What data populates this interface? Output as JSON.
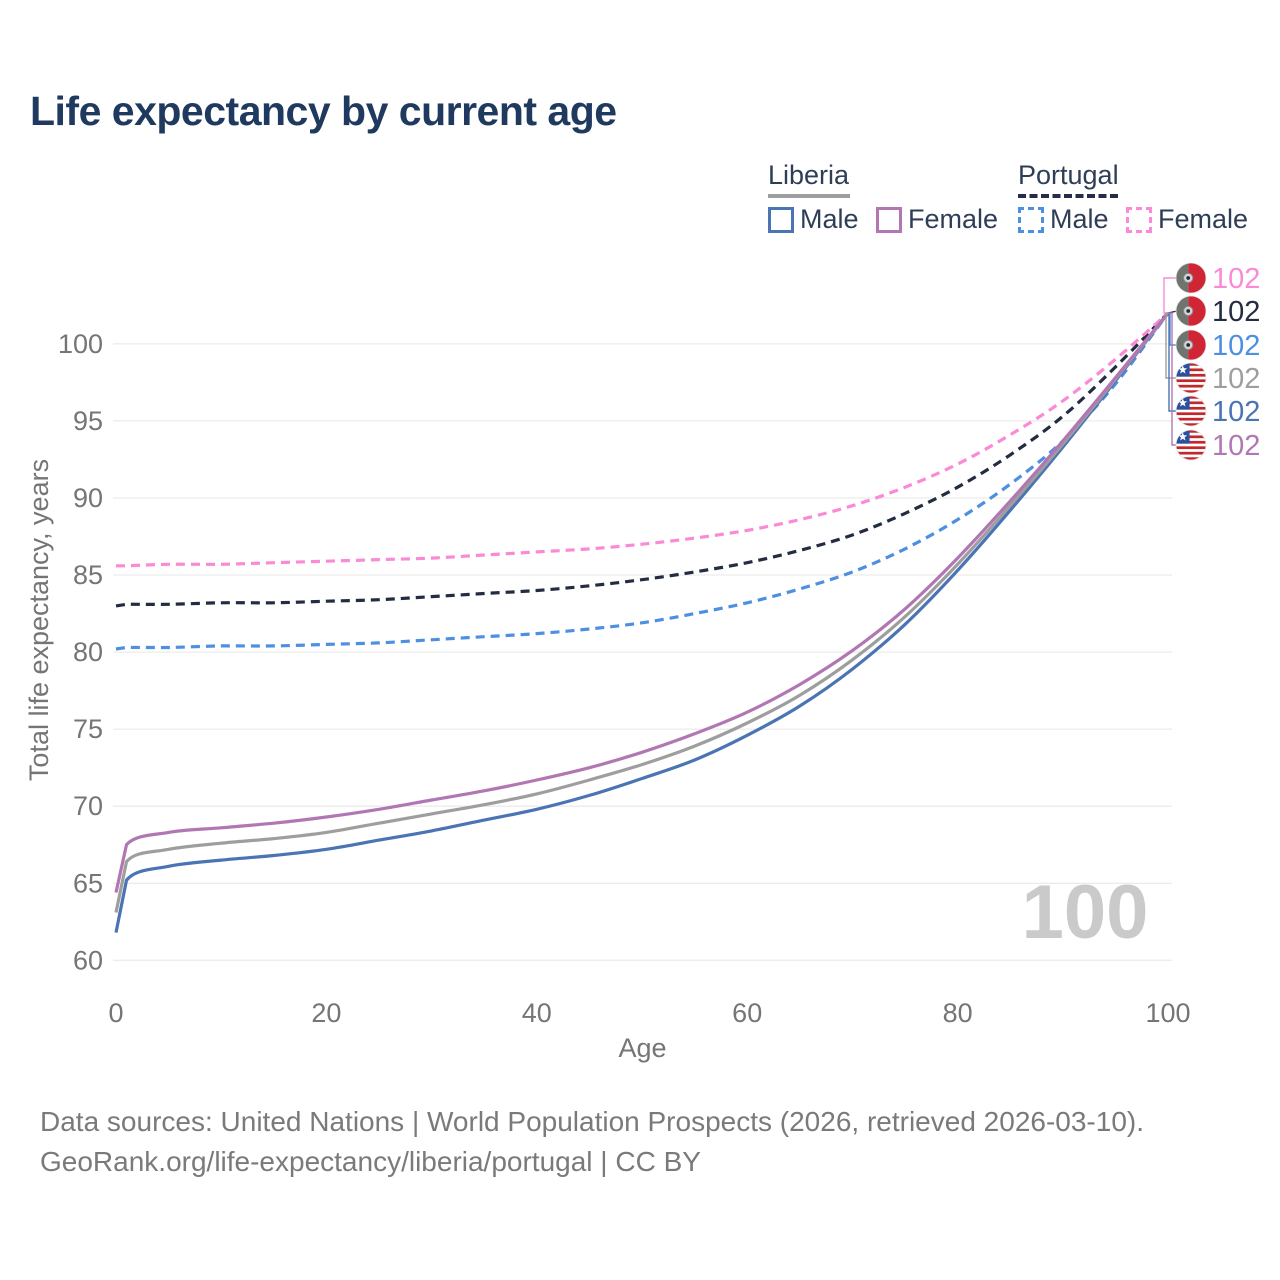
{
  "title": "Life expectancy by current age",
  "legend": {
    "groups": [
      {
        "name": "Liberia",
        "line_style": "solid",
        "underline_color": "#9e9e9e",
        "items": [
          {
            "label": "Male",
            "color": "#4a74b4"
          },
          {
            "label": "Female",
            "color": "#b177b3"
          }
        ]
      },
      {
        "name": "Portugal",
        "line_style": "dashed",
        "underline_color": "#242e49",
        "items": [
          {
            "label": "Male",
            "color": "#4d8fe0"
          },
          {
            "label": "Female",
            "color": "#fb8ad6"
          }
        ]
      }
    ]
  },
  "watermark": "100",
  "footer": {
    "line1": "Data sources: United Nations | World Population Prospects (2026, retrieved 2026-03-10).",
    "line2": "GeoRank.org/life-expectancy/liberia/portugal | CC BY"
  },
  "chart_data": {
    "type": "line",
    "title": "Life expectancy by current age",
    "xlabel": "Age",
    "ylabel": "Total life expectancy, years",
    "xlim": [
      0,
      100
    ],
    "ylim": [
      60,
      100
    ],
    "xticks": [
      0,
      20,
      40,
      60,
      80,
      100
    ],
    "yticks": [
      60,
      65,
      70,
      75,
      80,
      85,
      90,
      95,
      100
    ],
    "grid": "horizontal",
    "legend_position": "top-right",
    "x": [
      0,
      1,
      5,
      10,
      15,
      20,
      25,
      30,
      35,
      40,
      45,
      50,
      55,
      60,
      65,
      70,
      75,
      80,
      85,
      90,
      95,
      100
    ],
    "series": [
      {
        "name": "Portugal Female",
        "country": "Portugal",
        "sex": "Female",
        "style": "dashed",
        "color": "#fb8ad6",
        "flag": "portugal",
        "end_label": "102",
        "values": [
          85.6,
          85.6,
          85.7,
          85.7,
          85.8,
          85.9,
          86.0,
          86.1,
          86.3,
          86.5,
          86.7,
          87.0,
          87.4,
          87.9,
          88.6,
          89.5,
          90.7,
          92.2,
          94.1,
          96.3,
          99.0,
          102
        ]
      },
      {
        "name": "Portugal Both sexes",
        "country": "Portugal",
        "sex": "Both",
        "style": "dashed",
        "color": "#232c41",
        "flag": "portugal",
        "end_label": "102",
        "values": [
          83.0,
          83.1,
          83.1,
          83.2,
          83.2,
          83.3,
          83.4,
          83.6,
          83.8,
          84.0,
          84.3,
          84.7,
          85.2,
          85.8,
          86.6,
          87.6,
          89.0,
          90.7,
          92.8,
          95.3,
          98.5,
          102
        ]
      },
      {
        "name": "Portugal Male",
        "country": "Portugal",
        "sex": "Male",
        "style": "dashed",
        "color": "#4d8fe0",
        "flag": "portugal",
        "end_label": "102",
        "values": [
          80.2,
          80.3,
          80.3,
          80.4,
          80.4,
          80.5,
          80.6,
          80.8,
          81.0,
          81.2,
          81.5,
          81.9,
          82.5,
          83.2,
          84.1,
          85.2,
          86.7,
          88.6,
          90.9,
          93.7,
          97.4,
          102
        ]
      },
      {
        "name": "Liberia Both sexes",
        "country": "Liberia",
        "sex": "Both",
        "style": "solid",
        "color": "#9e9e9e",
        "flag": "liberia",
        "end_label": "102",
        "values": [
          63.1,
          66.4,
          67.2,
          67.6,
          67.9,
          68.3,
          68.9,
          69.5,
          70.1,
          70.8,
          71.7,
          72.7,
          73.9,
          75.4,
          77.2,
          79.5,
          82.3,
          85.7,
          89.5,
          93.5,
          97.7,
          102
        ]
      },
      {
        "name": "Liberia Male",
        "country": "Liberia",
        "sex": "Male",
        "style": "solid",
        "color": "#4a74b4",
        "flag": "liberia",
        "end_label": "102",
        "values": [
          61.8,
          65.2,
          66.1,
          66.5,
          66.8,
          67.2,
          67.8,
          68.4,
          69.1,
          69.8,
          70.7,
          71.8,
          73.0,
          74.6,
          76.5,
          78.9,
          81.8,
          85.3,
          89.2,
          93.3,
          97.6,
          102
        ]
      },
      {
        "name": "Liberia Female",
        "country": "Liberia",
        "sex": "Female",
        "style": "solid",
        "color": "#b177b3",
        "flag": "liberia",
        "end_label": "102",
        "values": [
          64.4,
          67.5,
          68.3,
          68.6,
          68.9,
          69.3,
          69.8,
          70.4,
          71.0,
          71.7,
          72.5,
          73.5,
          74.7,
          76.1,
          77.9,
          80.1,
          82.8,
          86.1,
          89.8,
          93.7,
          97.8,
          102
        ]
      }
    ],
    "flag_colors": {
      "portugal_green": "#6e756e",
      "portugal_red": "#d02535",
      "liberia_red": "#c1272d",
      "liberia_blue": "#2a50a0"
    }
  }
}
